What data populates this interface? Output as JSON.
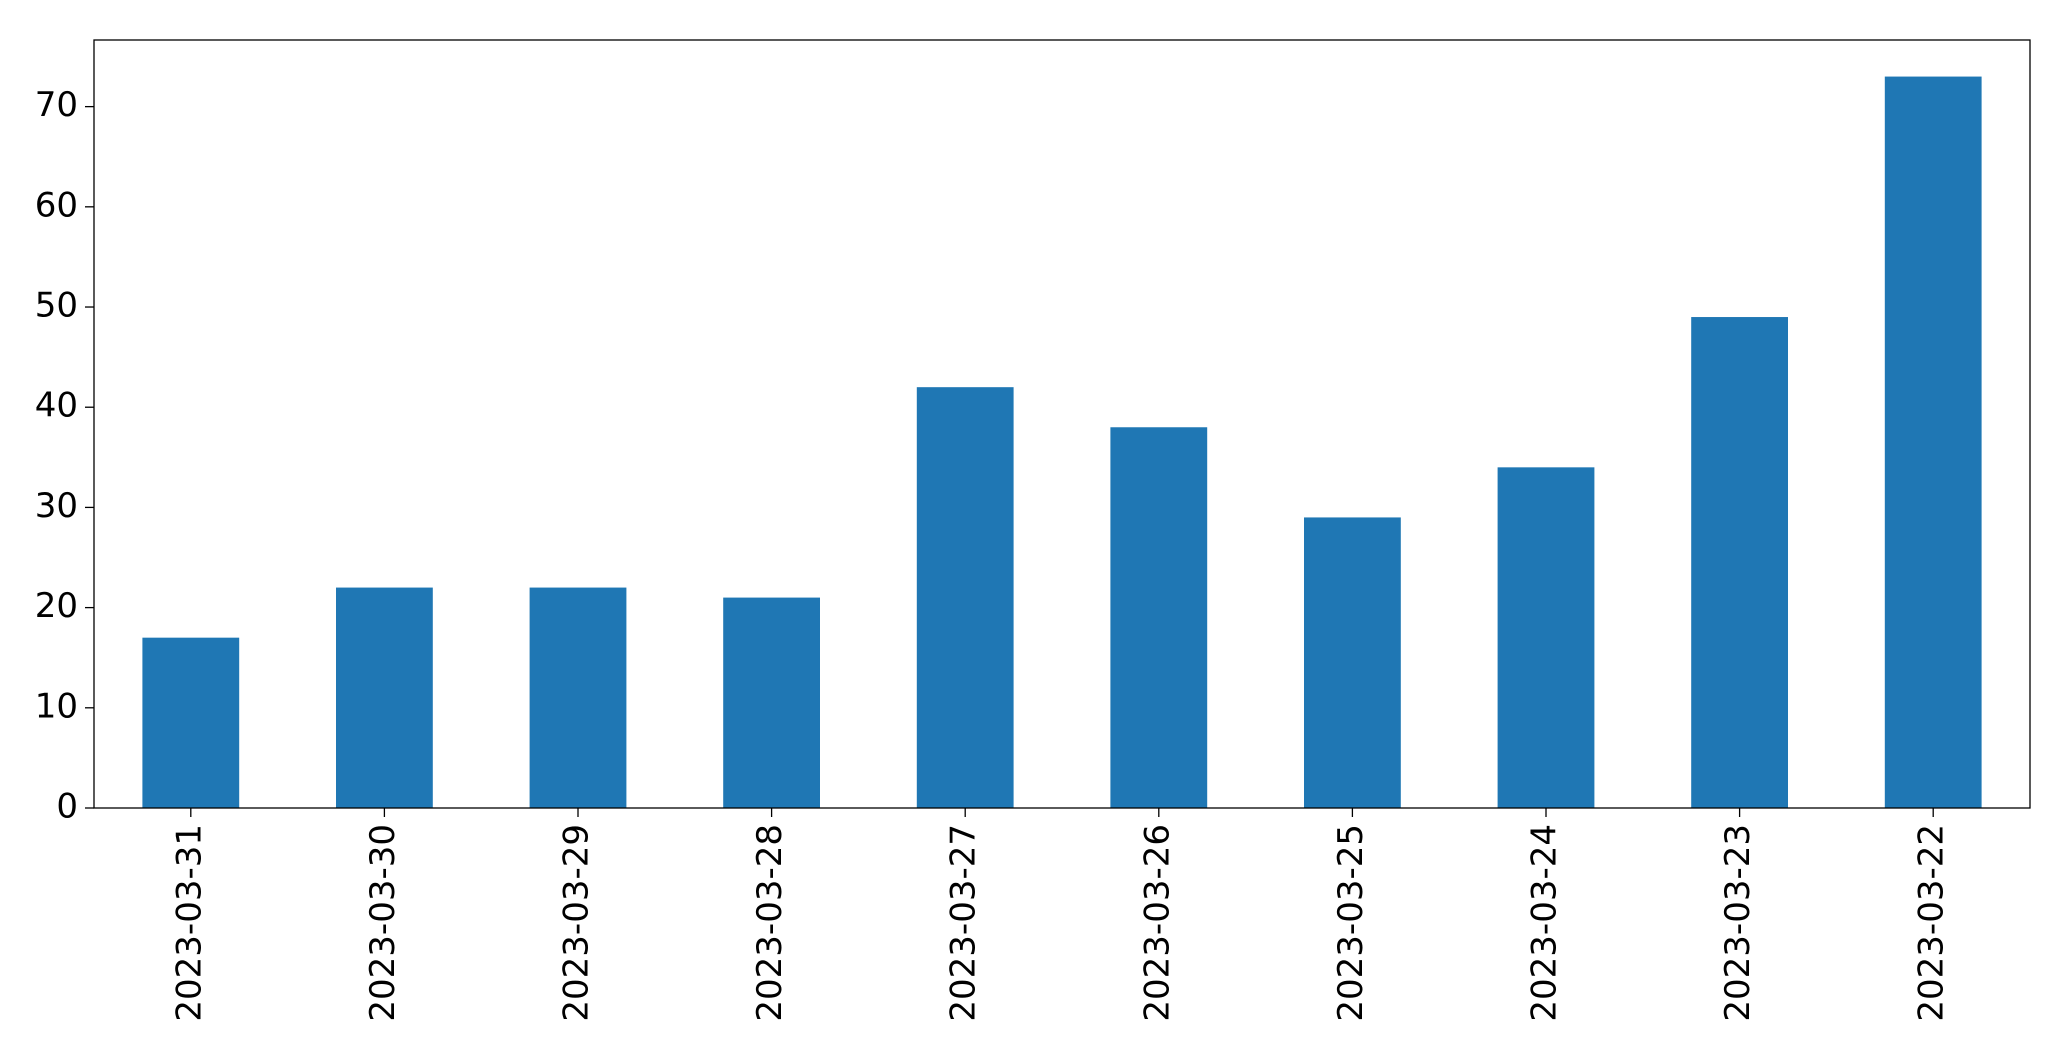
{
  "chart_data": {
    "type": "bar",
    "categories": [
      "2023-03-31",
      "2023-03-30",
      "2023-03-29",
      "2023-03-28",
      "2023-03-27",
      "2023-03-26",
      "2023-03-25",
      "2023-03-24",
      "2023-03-23",
      "2023-03-22"
    ],
    "values": [
      17,
      22,
      22,
      21,
      42,
      38,
      29,
      34,
      49,
      73
    ],
    "color": "#1f77b4",
    "ylim": [
      0,
      76.65
    ],
    "yticks": [
      0,
      10,
      20,
      30,
      40,
      50,
      60,
      70
    ],
    "grid": false
  }
}
